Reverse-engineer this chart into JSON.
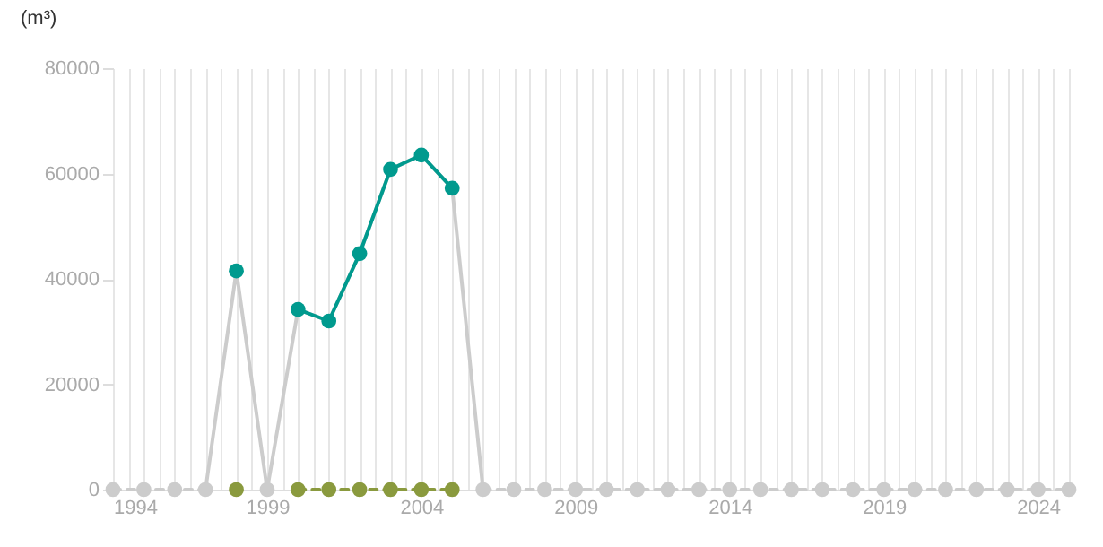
{
  "chart_data": {
    "type": "line",
    "ylabel": "(m³)",
    "x": [
      1994,
      1995,
      1996,
      1997,
      1998,
      1999,
      2000,
      2001,
      2002,
      2003,
      2004,
      2005,
      2006,
      2007,
      2008,
      2009,
      2010,
      2011,
      2012,
      2013,
      2014,
      2015,
      2016,
      2017,
      2018,
      2019,
      2020,
      2021,
      2022,
      2023,
      2024,
      2025
    ],
    "series": [
      {
        "color": "#cccccc",
        "marker": "none",
        "line_style": "solid",
        "values": [
          null,
          null,
          null,
          0,
          41500,
          0,
          34200,
          32000,
          44800,
          60800,
          63500,
          57200,
          0,
          null,
          null,
          null,
          null,
          null,
          null,
          null,
          null,
          null,
          null,
          null,
          null,
          null,
          null,
          null,
          null,
          null,
          null,
          null
        ]
      },
      {
        "color": "#cccccc",
        "marker": "circle",
        "line_style": "dashed",
        "values": [
          0,
          0,
          0,
          0,
          null,
          0,
          null,
          null,
          null,
          null,
          null,
          null,
          0,
          0,
          0,
          0,
          0,
          0,
          0,
          0,
          0,
          0,
          0,
          0,
          0,
          0,
          0,
          0,
          0,
          0,
          0,
          0
        ]
      },
      {
        "color": "#8a9a3e",
        "marker": "circle",
        "line_style": "dashed",
        "values": [
          null,
          null,
          null,
          null,
          0,
          null,
          0,
          0,
          0,
          0,
          0,
          0,
          null,
          null,
          null,
          null,
          null,
          null,
          null,
          null,
          null,
          null,
          null,
          null,
          null,
          null,
          null,
          null,
          null,
          null,
          null,
          null
        ]
      },
      {
        "color": "#009a8e",
        "marker": "circle",
        "line_style": "solid",
        "values": [
          null,
          null,
          null,
          null,
          41500,
          null,
          34200,
          32000,
          44800,
          60800,
          63500,
          57200,
          null,
          null,
          null,
          null,
          null,
          null,
          null,
          null,
          null,
          null,
          null,
          null,
          null,
          null,
          null,
          null,
          null,
          null,
          null,
          null
        ]
      }
    ],
    "xlim": [
      1994,
      2025
    ],
    "xticks": [
      {
        "value": 1994,
        "label": "1994"
      },
      {
        "value": 1994.5,
        "label": null
      },
      {
        "value": 1995,
        "label": null
      },
      {
        "value": 1995.5,
        "label": null
      },
      {
        "value": 1996,
        "label": null
      },
      {
        "value": 1996.5,
        "label": null
      },
      {
        "value": 1997,
        "label": null
      },
      {
        "value": 1997.5,
        "label": null
      },
      {
        "value": 1998,
        "label": null
      },
      {
        "value": 1998.5,
        "label": null
      },
      {
        "value": 1999,
        "label": "1999"
      },
      {
        "value": 1999.5,
        "label": null
      },
      {
        "value": 2000,
        "label": null
      },
      {
        "value": 2000.5,
        "label": null
      },
      {
        "value": 2001,
        "label": null
      },
      {
        "value": 2001.5,
        "label": null
      },
      {
        "value": 2002,
        "label": null
      },
      {
        "value": 2002.5,
        "label": null
      },
      {
        "value": 2003,
        "label": null
      },
      {
        "value": 2003.5,
        "label": null
      },
      {
        "value": 2004,
        "label": "2004"
      },
      {
        "value": 2004.5,
        "label": null
      },
      {
        "value": 2005,
        "label": null
      },
      {
        "value": 2005.5,
        "label": null
      },
      {
        "value": 2006,
        "label": null
      },
      {
        "value": 2006.5,
        "label": null
      },
      {
        "value": 2007,
        "label": null
      },
      {
        "value": 2007.5,
        "label": null
      },
      {
        "value": 2008,
        "label": null
      },
      {
        "value": 2008.5,
        "label": null
      },
      {
        "value": 2009,
        "label": "2009"
      },
      {
        "value": 2009.5,
        "label": null
      },
      {
        "value": 2010,
        "label": null
      },
      {
        "value": 2010.5,
        "label": null
      },
      {
        "value": 2011,
        "label": null
      },
      {
        "value": 2011.5,
        "label": null
      },
      {
        "value": 2012,
        "label": null
      },
      {
        "value": 2012.5,
        "label": null
      },
      {
        "value": 2013,
        "label": null
      },
      {
        "value": 2013.5,
        "label": null
      },
      {
        "value": 2014,
        "label": "2014"
      },
      {
        "value": 2014.5,
        "label": null
      },
      {
        "value": 2015,
        "label": null
      },
      {
        "value": 2015.5,
        "label": null
      },
      {
        "value": 2016,
        "label": null
      },
      {
        "value": 2016.5,
        "label": null
      },
      {
        "value": 2017,
        "label": null
      },
      {
        "value": 2017.5,
        "label": null
      },
      {
        "value": 2018,
        "label": null
      },
      {
        "value": 2018.5,
        "label": null
      },
      {
        "value": 2019,
        "label": "2019"
      },
      {
        "value": 2019.5,
        "label": null
      },
      {
        "value": 2020,
        "label": null
      },
      {
        "value": 2020.5,
        "label": null
      },
      {
        "value": 2021,
        "label": null
      },
      {
        "value": 2021.5,
        "label": null
      },
      {
        "value": 2022,
        "label": null
      },
      {
        "value": 2022.5,
        "label": null
      },
      {
        "value": 2023,
        "label": null
      },
      {
        "value": 2023.5,
        "label": null
      },
      {
        "value": 2024,
        "label": "2024"
      },
      {
        "value": 2024.5,
        "label": null
      },
      {
        "value": 2025,
        "label": null
      }
    ],
    "ylim": [
      0,
      80000
    ],
    "yticks": [
      0,
      20000,
      40000,
      60000,
      80000
    ],
    "grid": "x"
  }
}
